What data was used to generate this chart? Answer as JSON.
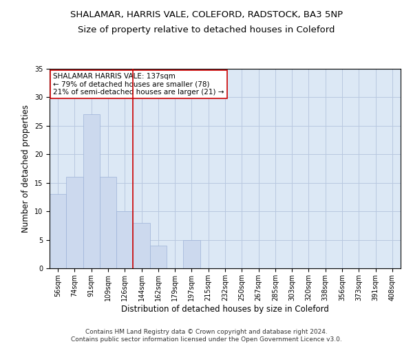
{
  "title1": "SHALAMAR, HARRIS VALE, COLEFORD, RADSTOCK, BA3 5NP",
  "title2": "Size of property relative to detached houses in Coleford",
  "xlabel": "Distribution of detached houses by size in Coleford",
  "ylabel": "Number of detached properties",
  "categories": [
    "56sqm",
    "74sqm",
    "91sqm",
    "109sqm",
    "126sqm",
    "144sqm",
    "162sqm",
    "179sqm",
    "197sqm",
    "215sqm",
    "232sqm",
    "250sqm",
    "267sqm",
    "285sqm",
    "303sqm",
    "320sqm",
    "338sqm",
    "356sqm",
    "373sqm",
    "391sqm",
    "408sqm"
  ],
  "values": [
    13,
    16,
    27,
    16,
    10,
    8,
    4,
    0,
    5,
    0,
    0,
    0,
    0,
    0,
    0,
    0,
    0,
    0,
    0,
    0,
    0
  ],
  "bar_color": "#ccd9ee",
  "bar_edge_color": "#9db3d8",
  "vline_x_idx": 5,
  "vline_color": "#cc0000",
  "annotation_text": "SHALAMAR HARRIS VALE: 137sqm\n← 79% of detached houses are smaller (78)\n21% of semi-detached houses are larger (21) →",
  "annotation_box_color": "#ffffff",
  "annotation_box_edge": "#cc0000",
  "ylim": [
    0,
    35
  ],
  "yticks": [
    0,
    5,
    10,
    15,
    20,
    25,
    30,
    35
  ],
  "grid_color": "#b8c8e0",
  "background_color": "#dce8f5",
  "footer": "Contains HM Land Registry data © Crown copyright and database right 2024.\nContains public sector information licensed under the Open Government Licence v3.0.",
  "title1_fontsize": 9.5,
  "title2_fontsize": 9.5,
  "xlabel_fontsize": 8.5,
  "ylabel_fontsize": 8.5,
  "tick_fontsize": 7,
  "annotation_fontsize": 7.5,
  "footer_fontsize": 6.5
}
